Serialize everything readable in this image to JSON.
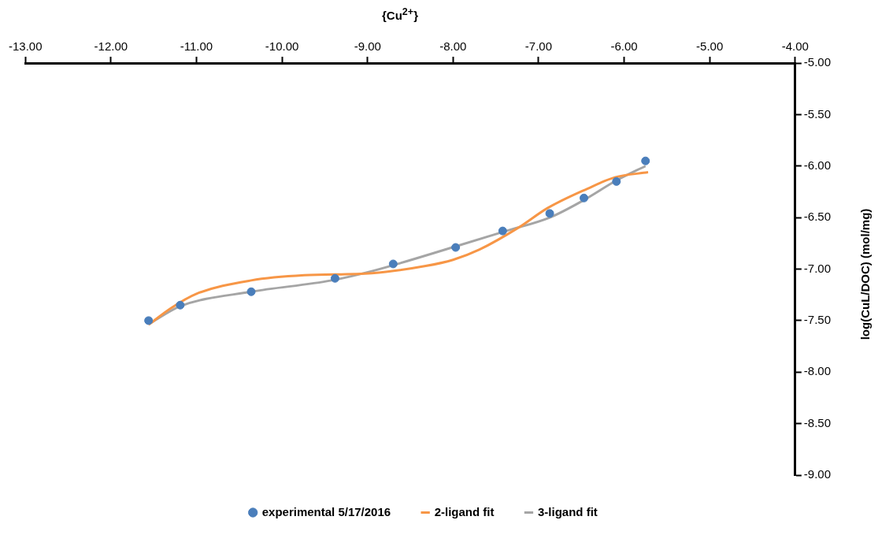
{
  "chart_data": {
    "type": "scatter",
    "xlabel": "{Cu$^{2+}$}",
    "ylabel": "log(CuL/DOC) (mol/mg)",
    "xlim": [
      -13,
      -4
    ],
    "xticks": [
      {
        "value": -13,
        "label": "-13.00"
      },
      {
        "value": -12,
        "label": "-12.00"
      },
      {
        "value": -11,
        "label": "-11.00"
      },
      {
        "value": -10,
        "label": "-10.00"
      },
      {
        "value": -9,
        "label": "-9.00"
      },
      {
        "value": -8,
        "label": "-8.00"
      },
      {
        "value": -7,
        "label": "-7.00"
      },
      {
        "value": -6,
        "label": "-6.00"
      },
      {
        "value": -5,
        "label": "-5.00"
      },
      {
        "value": -4,
        "label": "-4.00"
      }
    ],
    "ylim": [
      -9,
      -5
    ],
    "yticks": [
      {
        "value": -9,
        "label": "-9.00"
      },
      {
        "value": -8.5,
        "label": "-8.50"
      },
      {
        "value": -8,
        "label": "-8.00"
      },
      {
        "value": -7.5,
        "label": "-7.50"
      },
      {
        "value": -7,
        "label": "-7.00"
      },
      {
        "value": -6.5,
        "label": "-6.50"
      },
      {
        "value": -6,
        "label": "-6.00"
      },
      {
        "value": -5.5,
        "label": "-5.50"
      },
      {
        "value": -5,
        "label": "-5.00"
      }
    ],
    "grid": false,
    "legend": "bottom",
    "marker": "circle",
    "series": [
      {
        "name": "experimental 5/17/2016",
        "type": "scatter",
        "color": "#4a7ebb",
        "x": [
          -11.56,
          -11.19,
          -10.36,
          -9.38,
          -8.7,
          -7.97,
          -7.42,
          -6.87,
          -6.47,
          -6.09,
          -5.75
        ],
        "values": [
          -7.5,
          -7.35,
          -7.22,
          -7.09,
          -6.95,
          -6.79,
          -6.63,
          -6.46,
          -6.31,
          -6.15,
          -5.95
        ]
      },
      {
        "name": "2-ligand fit",
        "type": "line",
        "marker": "none",
        "color": "#f79646",
        "x": [
          -11.56,
          -11.3,
          -11.0,
          -10.36,
          -9.74,
          -8.95,
          -8.32,
          -8.0,
          -7.69,
          -7.22,
          -6.9,
          -6.43,
          -6.11,
          -5.72
        ],
        "values": [
          -7.54,
          -7.38,
          -7.24,
          -7.11,
          -7.06,
          -7.04,
          -6.97,
          -6.91,
          -6.81,
          -6.59,
          -6.41,
          -6.22,
          -6.11,
          -6.06
        ]
      },
      {
        "name": "3-ligand fit",
        "type": "line",
        "marker": "none",
        "color": "#a5a5a5",
        "x": [
          -11.53,
          -11.19,
          -10.36,
          -9.42,
          -8.95,
          -7.97,
          -7.38,
          -6.87,
          -6.47,
          -6.09,
          -5.75
        ],
        "values": [
          -7.52,
          -7.36,
          -7.22,
          -7.11,
          -7.02,
          -6.78,
          -6.63,
          -6.5,
          -6.33,
          -6.14,
          -6.0
        ]
      }
    ]
  }
}
